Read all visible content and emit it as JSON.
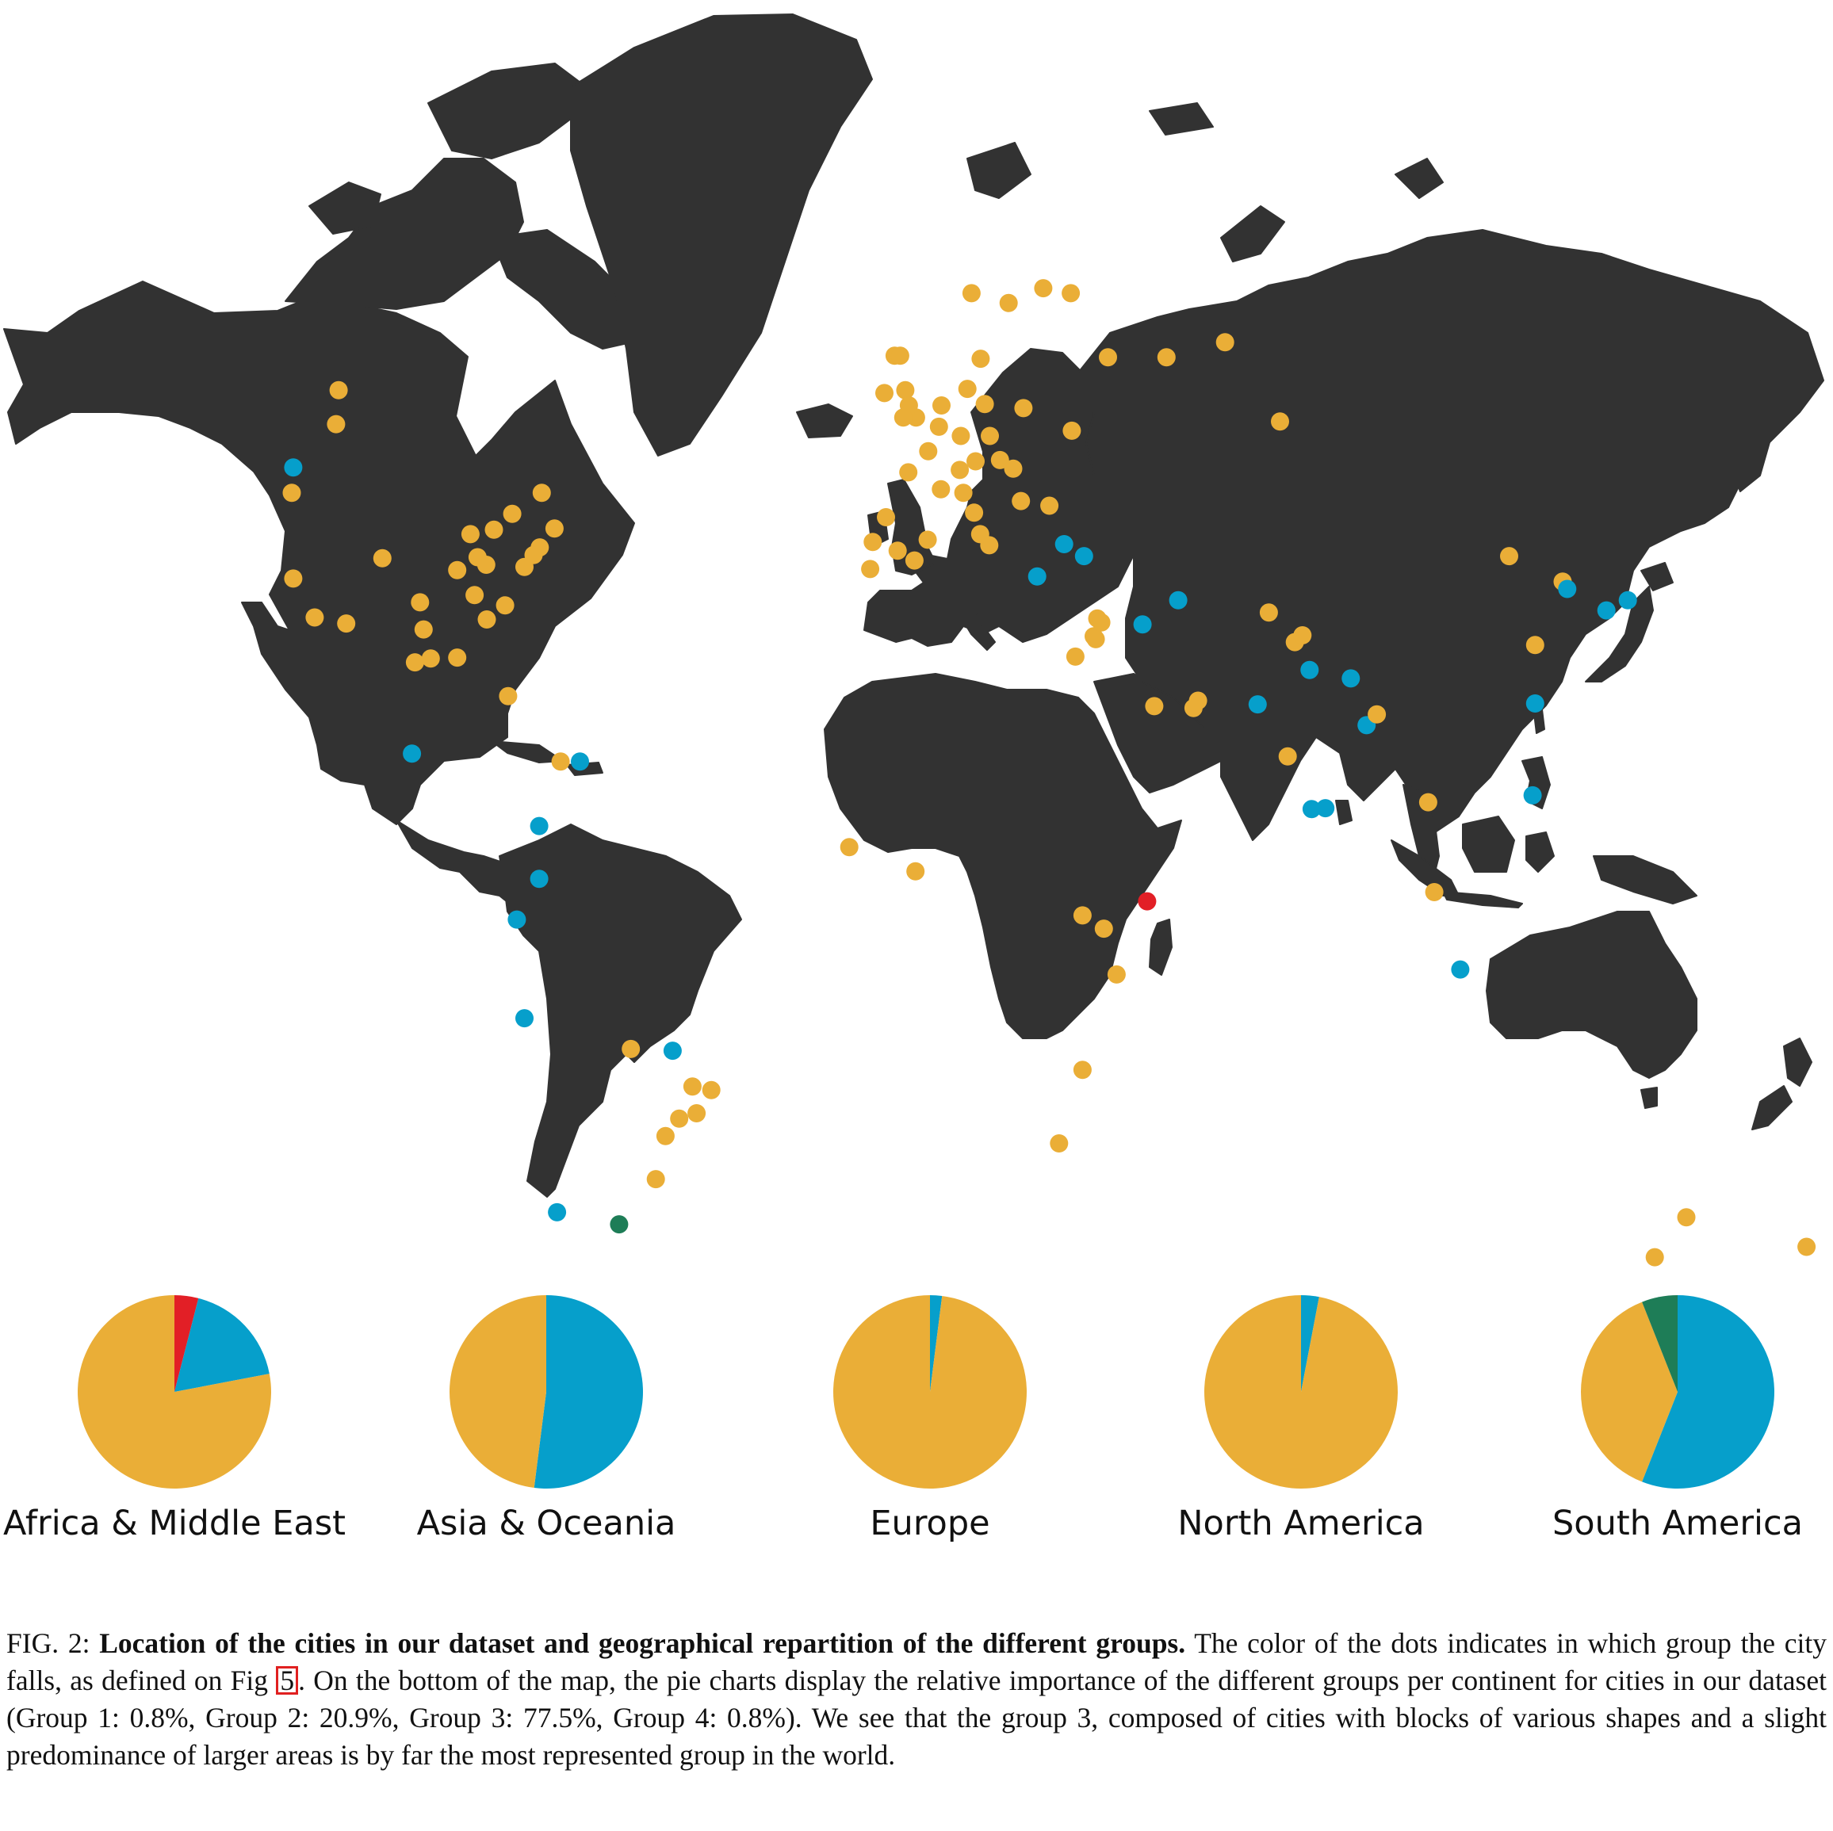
{
  "colors": {
    "land": "#323232",
    "water": "#ffffff",
    "group1": "#e21f26",
    "group2": "#069fcb",
    "group3": "#eaae37",
    "group4": "#1e7d57"
  },
  "map": {
    "cities": [
      {
        "lon": -122.4,
        "lat": 47.6,
        "group": 2
      },
      {
        "lon": -122.7,
        "lat": 45.5,
        "group": 3
      },
      {
        "lon": -122.4,
        "lat": 37.8,
        "group": 3
      },
      {
        "lon": -118.2,
        "lat": 34.0,
        "group": 3
      },
      {
        "lon": -112.0,
        "lat": 33.4,
        "group": 3
      },
      {
        "lon": -104.9,
        "lat": 39.7,
        "group": 3
      },
      {
        "lon": -113.5,
        "lat": 53.5,
        "group": 3
      },
      {
        "lon": -114.0,
        "lat": 51.0,
        "group": 3
      },
      {
        "lon": -97.5,
        "lat": 35.5,
        "group": 3
      },
      {
        "lon": -96.8,
        "lat": 32.8,
        "group": 3
      },
      {
        "lon": -95.4,
        "lat": 29.8,
        "group": 3
      },
      {
        "lon": -98.5,
        "lat": 29.4,
        "group": 3
      },
      {
        "lon": -90.2,
        "lat": 29.9,
        "group": 3
      },
      {
        "lon": -90.2,
        "lat": 38.6,
        "group": 3
      },
      {
        "lon": -87.6,
        "lat": 41.9,
        "group": 3
      },
      {
        "lon": -86.2,
        "lat": 39.8,
        "group": 3
      },
      {
        "lon": -84.5,
        "lat": 39.1,
        "group": 3
      },
      {
        "lon": -83.0,
        "lat": 42.3,
        "group": 3
      },
      {
        "lon": -84.4,
        "lat": 33.8,
        "group": 3
      },
      {
        "lon": -80.8,
        "lat": 35.2,
        "group": 3
      },
      {
        "lon": -86.8,
        "lat": 36.2,
        "group": 3
      },
      {
        "lon": -80.2,
        "lat": 25.8,
        "group": 3
      },
      {
        "lon": -79.4,
        "lat": 43.7,
        "group": 3
      },
      {
        "lon": -75.2,
        "lat": 40.0,
        "group": 3
      },
      {
        "lon": -77.0,
        "lat": 38.9,
        "group": 3
      },
      {
        "lon": -74.0,
        "lat": 40.7,
        "group": 3
      },
      {
        "lon": -71.1,
        "lat": 42.4,
        "group": 3
      },
      {
        "lon": -73.6,
        "lat": 45.5,
        "group": 3
      },
      {
        "lon": -99.1,
        "lat": 19.4,
        "group": 2
      },
      {
        "lon": -69.9,
        "lat": 18.5,
        "group": 3
      },
      {
        "lon": -66.1,
        "lat": 18.5,
        "group": 2
      },
      {
        "lon": -74.1,
        "lat": 11.0,
        "group": 2
      },
      {
        "lon": -74.1,
        "lat": 4.7,
        "group": 2
      },
      {
        "lon": -78.5,
        "lat": -0.2,
        "group": 2
      },
      {
        "lon": -77.0,
        "lat": -12.0,
        "group": 2
      },
      {
        "lon": -70.6,
        "lat": -33.4,
        "group": 2
      },
      {
        "lon": -58.4,
        "lat": -34.6,
        "group": 4
      },
      {
        "lon": -47.9,
        "lat": -15.8,
        "group": 2
      },
      {
        "lon": -56.1,
        "lat": -15.6,
        "group": 3
      },
      {
        "lon": -46.6,
        "lat": -23.5,
        "group": 3
      },
      {
        "lon": -43.2,
        "lat": -22.9,
        "group": 3
      },
      {
        "lon": -44.0,
        "lat": -19.9,
        "group": 3
      },
      {
        "lon": -40.3,
        "lat": -20.3,
        "group": 3
      },
      {
        "lon": -49.3,
        "lat": -25.4,
        "group": 3
      },
      {
        "lon": -51.2,
        "lat": -30.0,
        "group": 3
      },
      {
        "lon": -9.1,
        "lat": 38.7,
        "group": 3
      },
      {
        "lon": -8.6,
        "lat": 41.2,
        "group": 3
      },
      {
        "lon": -3.7,
        "lat": 40.4,
        "group": 3
      },
      {
        "lon": -6.0,
        "lat": 43.4,
        "group": 3
      },
      {
        "lon": 2.2,
        "lat": 41.4,
        "group": 3
      },
      {
        "lon": -0.4,
        "lat": 39.5,
        "group": 3
      },
      {
        "lon": 2.3,
        "lat": 48.9,
        "group": 3
      },
      {
        "lon": -1.6,
        "lat": 47.2,
        "group": 3
      },
      {
        "lon": 4.8,
        "lat": 45.8,
        "group": 3
      },
      {
        "lon": -0.1,
        "lat": 51.5,
        "group": 3
      },
      {
        "lon": -2.2,
        "lat": 53.5,
        "group": 3
      },
      {
        "lon": -1.5,
        "lat": 52.4,
        "group": 3
      },
      {
        "lon": -4.3,
        "lat": 55.9,
        "group": 3
      },
      {
        "lon": -3.2,
        "lat": 55.9,
        "group": 3
      },
      {
        "lon": -2.6,
        "lat": 51.5,
        "group": 3
      },
      {
        "lon": -6.3,
        "lat": 53.3,
        "group": 3
      },
      {
        "lon": 4.9,
        "lat": 52.4,
        "group": 3
      },
      {
        "lon": 4.4,
        "lat": 50.8,
        "group": 3
      },
      {
        "lon": 8.7,
        "lat": 50.1,
        "group": 3
      },
      {
        "lon": 13.4,
        "lat": 52.5,
        "group": 3
      },
      {
        "lon": 10.0,
        "lat": 53.6,
        "group": 3
      },
      {
        "lon": 11.6,
        "lat": 48.1,
        "group": 3
      },
      {
        "lon": 8.5,
        "lat": 47.4,
        "group": 3
      },
      {
        "lon": 9.2,
        "lat": 45.5,
        "group": 3
      },
      {
        "lon": 11.3,
        "lat": 43.8,
        "group": 3
      },
      {
        "lon": 12.5,
        "lat": 41.9,
        "group": 3
      },
      {
        "lon": 14.3,
        "lat": 40.9,
        "group": 3
      },
      {
        "lon": 14.4,
        "lat": 50.1,
        "group": 3
      },
      {
        "lon": 16.4,
        "lat": 48.2,
        "group": 3
      },
      {
        "lon": 19.0,
        "lat": 47.5,
        "group": 3
      },
      {
        "lon": 21.0,
        "lat": 52.2,
        "group": 3
      },
      {
        "lon": 12.6,
        "lat": 55.7,
        "group": 3
      },
      {
        "lon": 10.8,
        "lat": 59.9,
        "group": 3
      },
      {
        "lon": 18.1,
        "lat": 59.3,
        "group": 3
      },
      {
        "lon": 24.9,
        "lat": 60.2,
        "group": 3
      },
      {
        "lon": 26.1,
        "lat": 44.4,
        "group": 3
      },
      {
        "lon": 20.5,
        "lat": 44.8,
        "group": 3
      },
      {
        "lon": 23.7,
        "lat": 38.0,
        "group": 2
      },
      {
        "lon": 29.0,
        "lat": 41.0,
        "group": 2
      },
      {
        "lon": 32.9,
        "lat": 39.9,
        "group": 2
      },
      {
        "lon": 30.5,
        "lat": 50.5,
        "group": 3
      },
      {
        "lon": 37.6,
        "lat": 55.8,
        "group": 3
      },
      {
        "lon": 30.3,
        "lat": 59.9,
        "group": 3
      },
      {
        "lon": 49.1,
        "lat": 55.8,
        "group": 3
      },
      {
        "lon": 60.6,
        "lat": 56.8,
        "group": 3
      },
      {
        "lon": 51.4,
        "lat": 35.7,
        "group": 2
      },
      {
        "lon": 44.4,
        "lat": 33.3,
        "group": 2
      },
      {
        "lon": 35.2,
        "lat": 31.8,
        "group": 3
      },
      {
        "lon": 34.8,
        "lat": 32.1,
        "group": 3
      },
      {
        "lon": 35.5,
        "lat": 33.9,
        "group": 3
      },
      {
        "lon": 36.3,
        "lat": 33.5,
        "group": 3
      },
      {
        "lon": 31.2,
        "lat": 30.0,
        "group": 3
      },
      {
        "lon": 46.7,
        "lat": 24.7,
        "group": 3
      },
      {
        "lon": 55.3,
        "lat": 25.3,
        "group": 3
      },
      {
        "lon": 54.4,
        "lat": 24.5,
        "group": 3
      },
      {
        "lon": 67.0,
        "lat": 24.9,
        "group": 2
      },
      {
        "lon": 71.4,
        "lat": 51.2,
        "group": 3
      },
      {
        "lon": 69.2,
        "lat": 34.5,
        "group": 3
      },
      {
        "lon": 74.3,
        "lat": 31.5,
        "group": 3
      },
      {
        "lon": 77.2,
        "lat": 28.6,
        "group": 2
      },
      {
        "lon": 75.8,
        "lat": 32.2,
        "group": 3
      },
      {
        "lon": 72.9,
        "lat": 19.1,
        "group": 3
      },
      {
        "lon": 77.6,
        "lat": 13.0,
        "group": 2
      },
      {
        "lon": 80.3,
        "lat": 13.1,
        "group": 2
      },
      {
        "lon": 85.3,
        "lat": 27.7,
        "group": 2
      },
      {
        "lon": 88.4,
        "lat": 22.6,
        "group": 2
      },
      {
        "lon": 90.4,
        "lat": 23.8,
        "group": 3
      },
      {
        "lon": 100.5,
        "lat": 13.8,
        "group": 3
      },
      {
        "lon": 101.7,
        "lat": 3.1,
        "group": 3
      },
      {
        "lon": 106.8,
        "lat": -6.2,
        "group": 2
      },
      {
        "lon": 116.4,
        "lat": 39.9,
        "group": 3
      },
      {
        "lon": 121.5,
        "lat": 31.2,
        "group": 3
      },
      {
        "lon": 121.5,
        "lat": 25.0,
        "group": 2
      },
      {
        "lon": 121.0,
        "lat": 14.6,
        "group": 2
      },
      {
        "lon": 126.9,
        "lat": 37.5,
        "group": 3
      },
      {
        "lon": 127.8,
        "lat": 36.8,
        "group": 2
      },
      {
        "lon": 135.5,
        "lat": 34.7,
        "group": 2
      },
      {
        "lon": 139.7,
        "lat": 35.7,
        "group": 2
      },
      {
        "lon": 151.2,
        "lat": -33.9,
        "group": 3
      },
      {
        "lon": 145.0,
        "lat": -37.8,
        "group": 3
      },
      {
        "lon": 174.8,
        "lat": -36.8,
        "group": 3
      },
      {
        "lon": -13.2,
        "lat": 8.5,
        "group": 3
      },
      {
        "lon": -0.2,
        "lat": 5.6,
        "group": 3
      },
      {
        "lon": 32.6,
        "lat": 0.3,
        "group": 3
      },
      {
        "lon": 36.8,
        "lat": -1.3,
        "group": 3
      },
      {
        "lon": 39.3,
        "lat": -6.8,
        "group": 3
      },
      {
        "lon": 45.3,
        "lat": 2.0,
        "group": 1
      },
      {
        "lon": 32.6,
        "lat": -18.0,
        "group": 3
      },
      {
        "lon": 28.0,
        "lat": -26.2,
        "group": 3
      }
    ]
  },
  "chart_data": [
    {
      "type": "pie",
      "title": "Africa & Middle East",
      "groups": [
        "Group 1",
        "Group 2",
        "Group 3",
        "Group 4"
      ],
      "values": [
        4,
        18,
        78,
        0
      ]
    },
    {
      "type": "pie",
      "title": "Asia & Oceania",
      "groups": [
        "Group 1",
        "Group 2",
        "Group 3",
        "Group 4"
      ],
      "values": [
        0,
        52,
        48,
        0
      ]
    },
    {
      "type": "pie",
      "title": "Europe",
      "groups": [
        "Group 1",
        "Group 2",
        "Group 3",
        "Group 4"
      ],
      "values": [
        0,
        2,
        98,
        0
      ]
    },
    {
      "type": "pie",
      "title": "North America",
      "groups": [
        "Group 1",
        "Group 2",
        "Group 3",
        "Group 4"
      ],
      "values": [
        0,
        3,
        97,
        0
      ]
    },
    {
      "type": "pie",
      "title": "South America",
      "groups": [
        "Group 1",
        "Group 2",
        "Group 3",
        "Group 4"
      ],
      "values": [
        0,
        56,
        38,
        6
      ]
    }
  ],
  "caption": {
    "label": "FIG. 2: ",
    "title": "Location of the cities in our dataset and geographical repartition of the different groups.",
    "text_part1": " The color of the dots indicates in which group the city falls, as defined on Fig ",
    "fig_ref": "5",
    "text_part2": ". On the bottom of the map, the pie charts display the relative importance of the different groups per continent for cities in our dataset (Group 1: 0.8%, Group 2: 20.9%, Group 3: 77.5%, Group 4: 0.8%). We see that the group 3, composed of cities with blocks of various shapes and a slight predominance of larger areas is by far the most represented group in the world."
  }
}
